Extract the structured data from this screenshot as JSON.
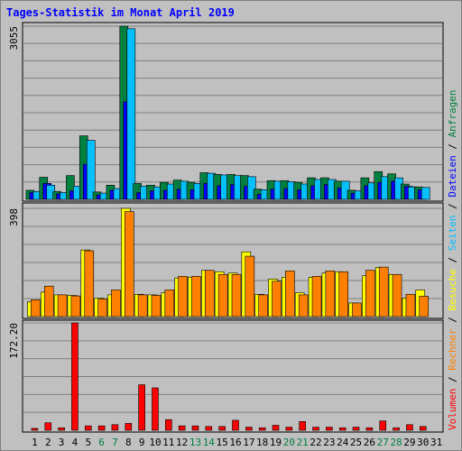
{
  "title": "Tages-Statistik im Monat April 2019",
  "colors": {
    "anfragen": "#008040",
    "dateien": "#0000ff",
    "seiten": "#00c0ff",
    "besuche": "#ffff00",
    "rechner": "#ff8000",
    "volumen": "#ff0000",
    "panel_bg": "#c0c0c0",
    "plot_bg": "#c0c0c0",
    "grid": "#808080",
    "weekend_day": "#008040",
    "weekday_day": "#000000"
  },
  "legend": {
    "anfragen": "Anfragen",
    "dateien": "Dateien",
    "seiten": "Seiten",
    "besuche": "Besuche",
    "rechner": "Rechner",
    "volumen": "Volumen",
    "sep": " / "
  },
  "chart_data": [
    {
      "type": "bar",
      "panel": "top",
      "categories": [
        "1",
        "2",
        "3",
        "4",
        "5",
        "6",
        "7",
        "8",
        "9",
        "10",
        "11",
        "12",
        "13",
        "14",
        "15",
        "16",
        "17",
        "18",
        "19",
        "20",
        "21",
        "22",
        "23",
        "24",
        "25",
        "26",
        "27",
        "28",
        "29",
        "30",
        "31"
      ],
      "ymax_label": "3055",
      "ylim": [
        0,
        3055
      ],
      "series": [
        {
          "name": "Anfragen",
          "values": [
            160,
            390,
            140,
            420,
            1120,
            130,
            250,
            3055,
            280,
            250,
            300,
            340,
            300,
            470,
            440,
            440,
            420,
            180,
            330,
            330,
            300,
            380,
            380,
            320,
            160,
            380,
            490,
            450,
            270,
            220,
            0
          ]
        },
        {
          "name": "Dateien",
          "values": [
            120,
            280,
            100,
            150,
            620,
            80,
            160,
            1720,
            120,
            150,
            160,
            180,
            170,
            280,
            240,
            260,
            230,
            90,
            180,
            190,
            170,
            240,
            260,
            200,
            110,
            240,
            300,
            320,
            230,
            170,
            0
          ]
        },
        {
          "name": "Seiten",
          "values": [
            140,
            250,
            120,
            230,
            1040,
            110,
            190,
            3010,
            230,
            220,
            270,
            320,
            280,
            460,
            430,
            420,
            400,
            170,
            320,
            310,
            270,
            350,
            350,
            320,
            150,
            290,
            400,
            380,
            220,
            210,
            0
          ]
        }
      ]
    },
    {
      "type": "bar",
      "panel": "middle",
      "categories": [
        "1",
        "2",
        "3",
        "4",
        "5",
        "6",
        "7",
        "8",
        "9",
        "10",
        "11",
        "12",
        "13",
        "14",
        "15",
        "16",
        "17",
        "18",
        "19",
        "20",
        "21",
        "22",
        "23",
        "24",
        "25",
        "26",
        "27",
        "28",
        "29",
        "30",
        "31"
      ],
      "ymax_label": "398",
      "ylim": [
        0,
        398
      ],
      "series": [
        {
          "name": "Besuche",
          "values": [
            55,
            90,
            80,
            78,
            245,
            68,
            80,
            398,
            82,
            80,
            88,
            142,
            145,
            170,
            165,
            160,
            238,
            82,
            138,
            145,
            88,
            145,
            160,
            165,
            50,
            150,
            180,
            155,
            68,
            98,
            0
          ]
        },
        {
          "name": "Rechner",
          "values": [
            62,
            112,
            80,
            76,
            242,
            65,
            98,
            386,
            80,
            78,
            98,
            148,
            148,
            170,
            155,
            155,
            222,
            80,
            130,
            168,
            80,
            148,
            168,
            165,
            50,
            170,
            182,
            155,
            82,
            75,
            0
          ]
        }
      ]
    },
    {
      "type": "bar",
      "panel": "bottom",
      "categories": [
        "1",
        "2",
        "3",
        "4",
        "5",
        "6",
        "7",
        "8",
        "9",
        "10",
        "11",
        "12",
        "13",
        "14",
        "15",
        "16",
        "17",
        "18",
        "19",
        "20",
        "21",
        "22",
        "23",
        "24",
        "25",
        "26",
        "27",
        "28",
        "29",
        "30",
        "31"
      ],
      "ymax_label": "172.20",
      "ylim": [
        0,
        172.2
      ],
      "series": [
        {
          "name": "Volumen",
          "values": [
            3,
            12,
            4,
            172.2,
            7,
            7,
            9,
            11,
            73,
            68,
            17,
            7,
            7,
            6,
            6,
            16,
            5,
            4,
            8,
            5,
            14,
            5,
            5,
            4,
            5,
            4,
            15,
            4,
            9,
            6,
            0
          ]
        }
      ]
    }
  ],
  "weekend_days": [
    6,
    7,
    13,
    14,
    20,
    21,
    27,
    28
  ]
}
